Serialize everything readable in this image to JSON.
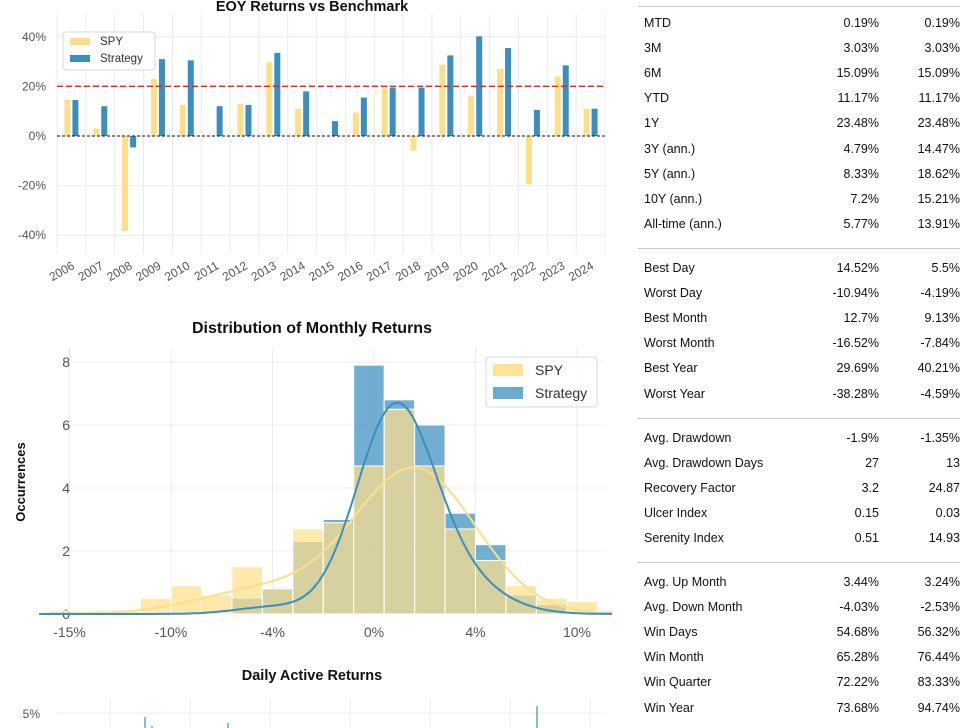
{
  "eoy_chart": {
    "title": "EOY Returns  vs Benchmark",
    "colors": {
      "spy": "#fddf8a",
      "strategy": "#3a8fc0",
      "benchmark_line": "#e3251f"
    },
    "benchmark_line_value": 20,
    "y_ticks": [
      "40%",
      "20%",
      "0%",
      "-20%",
      "-40%"
    ]
  },
  "dist_chart": {
    "title": "Distribution of Monthly Returns",
    "ylabel": "Occurrences",
    "y_ticks": [
      "0",
      "2",
      "4",
      "6",
      "8"
    ],
    "x_ticks": [
      "-15%",
      "-10%",
      "-4%",
      "0%",
      "4%",
      "10%"
    ]
  },
  "daily_chart": {
    "title": "Daily Active Returns",
    "y_ticks": [
      "5%"
    ]
  },
  "chart_data": [
    {
      "type": "bar",
      "title": "EOY Returns  vs Benchmark",
      "categories": [
        "2006",
        "2007",
        "2008",
        "2009",
        "2010",
        "2011",
        "2012",
        "2013",
        "2014",
        "2015",
        "2016",
        "2017",
        "2018",
        "2019",
        "2020",
        "2021",
        "2022",
        "2023",
        "2024"
      ],
      "series": [
        {
          "name": "SPY",
          "values": [
            14.5,
            3,
            -38.3,
            23,
            12.5,
            0,
            13,
            29.7,
            11,
            0,
            9.5,
            19.5,
            -6,
            28.7,
            16,
            27,
            -19.5,
            24,
            11
          ]
        },
        {
          "name": "Strategy",
          "values": [
            14.5,
            12,
            -4.6,
            31,
            30.5,
            12,
            12.5,
            33.5,
            18,
            6,
            15.5,
            19.5,
            19.5,
            32.5,
            40.2,
            35.5,
            10.5,
            28.5,
            11
          ]
        }
      ],
      "ylim": [
        -40,
        40
      ],
      "grid": true,
      "legend": "top-left"
    },
    {
      "type": "bar",
      "title": "Distribution of Monthly Returns",
      "ylabel": "Occurrences",
      "bins": [
        -16,
        -14.5,
        -13,
        -11.5,
        -10,
        -8.5,
        -7,
        -5.5,
        -4,
        -2.5,
        -1,
        0.5,
        2,
        3.5,
        5,
        6.5,
        8,
        9.5,
        11
      ],
      "series": [
        {
          "name": "SPY",
          "values": [
            0.1,
            0.1,
            0.1,
            0.5,
            0.9,
            0.6,
            1.5,
            0.8,
            2.7,
            2.9,
            4.7,
            6.5,
            4.7,
            2.7,
            1.7,
            0.9,
            0.5,
            0.4,
            0.1
          ]
        },
        {
          "name": "Strategy",
          "values": [
            0,
            0,
            0,
            0,
            0,
            0,
            0.5,
            0.8,
            2.3,
            3.0,
            7.9,
            6.8,
            6.0,
            3.2,
            2.2,
            0.6,
            0.3,
            0,
            0
          ]
        }
      ],
      "ylim": [
        0,
        8.4
      ],
      "legend": "top-right"
    }
  ],
  "metrics": {
    "groups": [
      [
        {
          "label": "MTD",
          "spy": "0.19%",
          "strategy": "0.19%"
        },
        {
          "label": "3M",
          "spy": "3.03%",
          "strategy": "3.03%"
        },
        {
          "label": "6M",
          "spy": "15.09%",
          "strategy": "15.09%"
        },
        {
          "label": "YTD",
          "spy": "11.17%",
          "strategy": "11.17%"
        },
        {
          "label": "1Y",
          "spy": "23.48%",
          "strategy": "23.48%"
        },
        {
          "label": "3Y (ann.)",
          "spy": "4.79%",
          "strategy": "14.47%"
        },
        {
          "label": "5Y (ann.)",
          "spy": "8.33%",
          "strategy": "18.62%"
        },
        {
          "label": "10Y (ann.)",
          "spy": "7.2%",
          "strategy": "15.21%"
        },
        {
          "label": "All-time (ann.)",
          "spy": "5.77%",
          "strategy": "13.91%"
        }
      ],
      [
        {
          "label": "Best Day",
          "spy": "14.52%",
          "strategy": "5.5%"
        },
        {
          "label": "Worst Day",
          "spy": "-10.94%",
          "strategy": "-4.19%"
        },
        {
          "label": "Best Month",
          "spy": "12.7%",
          "strategy": "9.13%"
        },
        {
          "label": "Worst Month",
          "spy": "-16.52%",
          "strategy": "-7.84%"
        },
        {
          "label": "Best Year",
          "spy": "29.69%",
          "strategy": "40.21%"
        },
        {
          "label": "Worst Year",
          "spy": "-38.28%",
          "strategy": "-4.59%"
        }
      ],
      [
        {
          "label": "Avg. Drawdown",
          "spy": "-1.9%",
          "strategy": "-1.35%"
        },
        {
          "label": "Avg. Drawdown Days",
          "spy": "27",
          "strategy": "13"
        },
        {
          "label": "Recovery Factor",
          "spy": "3.2",
          "strategy": "24.87"
        },
        {
          "label": "Ulcer Index",
          "spy": "0.15",
          "strategy": "0.03"
        },
        {
          "label": "Serenity Index",
          "spy": "0.51",
          "strategy": "14.93"
        }
      ],
      [
        {
          "label": "Avg. Up Month",
          "spy": "3.44%",
          "strategy": "3.24%"
        },
        {
          "label": "Avg. Down Month",
          "spy": "-4.03%",
          "strategy": "-2.53%"
        },
        {
          "label": "Win Days",
          "spy": "54.68%",
          "strategy": "56.32%"
        },
        {
          "label": "Win Month",
          "spy": "65.28%",
          "strategy": "76.44%"
        },
        {
          "label": "Win Quarter",
          "spy": "72.22%",
          "strategy": "83.33%"
        },
        {
          "label": "Win Year",
          "spy": "73.68%",
          "strategy": "94.74%"
        }
      ]
    ]
  }
}
